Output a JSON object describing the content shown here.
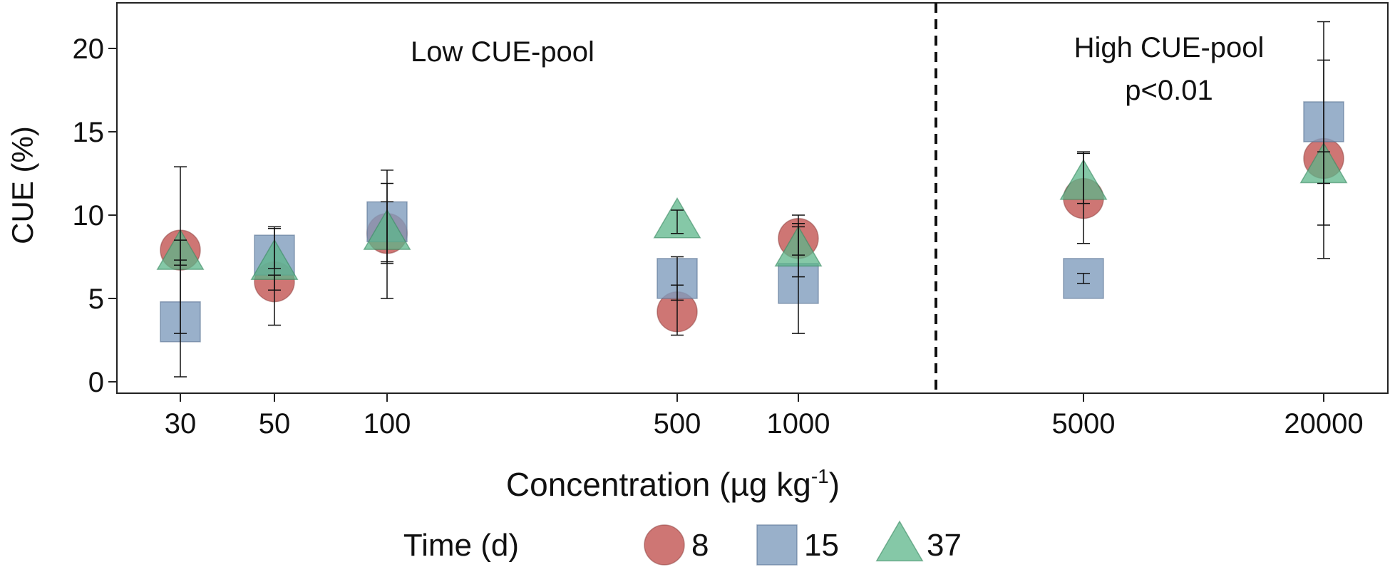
{
  "chart_data": {
    "type": "scatter",
    "xlabel": "Concentration (µg kg",
    "xlabel_superscript": "-1",
    "xlabel_close": ")",
    "ylabel": "CUE (%)",
    "ylim": [
      0,
      22
    ],
    "yticks": [
      0,
      5,
      10,
      15,
      20
    ],
    "categories": [
      "30",
      "50",
      "100",
      "500",
      "1000",
      "5000",
      "20000"
    ],
    "grid": false,
    "legend_title": "Time (d)",
    "legend_position": "bottom",
    "annotations": {
      "low_pool": "Low CUE-pool",
      "high_pool": "High CUE-pool",
      "p_value": "p<0.01"
    },
    "series": [
      {
        "name": "8",
        "marker": "circle",
        "color": "#c0504d",
        "values": [
          7.9,
          6.0,
          8.9,
          4.2,
          8.6,
          11.0,
          13.4
        ],
        "err_low": [
          7.0,
          5.5,
          7.2,
          2.8,
          7.6,
          8.3,
          7.4
        ],
        "err_high": [
          8.5,
          6.4,
          11.9,
          5.8,
          9.5,
          13.8,
          19.3
        ]
      },
      {
        "name": "15",
        "marker": "square",
        "color": "#7f9cbd",
        "values": [
          3.6,
          7.6,
          9.6,
          6.2,
          5.9,
          6.2,
          15.6
        ],
        "err_low": [
          2.9,
          6.8,
          7.1,
          4.9,
          2.9,
          5.9,
          9.4
        ],
        "err_high": [
          7.3,
          9.3,
          12.7,
          7.5,
          9.3,
          6.5,
          21.6
        ]
      },
      {
        "name": "37",
        "marker": "triangle",
        "color": "#5cb589",
        "values": [
          7.7,
          7.1,
          8.9,
          9.6,
          7.9,
          11.9,
          12.9
        ],
        "err_low": [
          0.3,
          3.4,
          5.0,
          8.9,
          6.3,
          10.7,
          11.9
        ],
        "err_high": [
          12.9,
          9.2,
          10.8,
          10.3,
          10.0,
          13.7,
          13.8
        ]
      }
    ]
  }
}
